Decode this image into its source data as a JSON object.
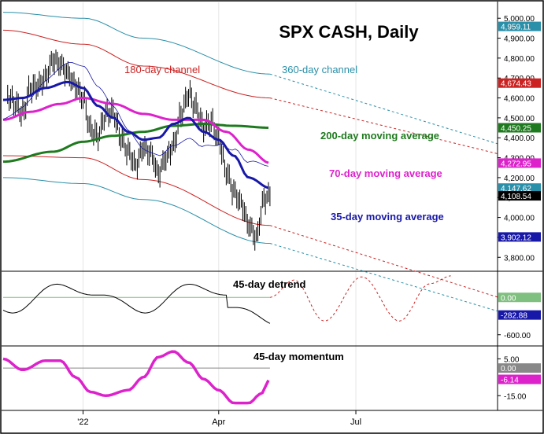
{
  "chart_data": [
    {
      "type": "line",
      "panel": "price",
      "title": "SPX CASH, Daily",
      "y_axis_ticks": [
        "5,000.00",
        "4,900.00",
        "4,800.00",
        "4,700.00",
        "4,600.00",
        "4,500.00",
        "4,400.00",
        "4,300.00",
        "4,200.00",
        "4,100.00",
        "4,000.00",
        "3,900.00",
        "3,800.00"
      ],
      "tick_values": [
        5000,
        4900,
        4800,
        4700,
        4600,
        4500,
        4400,
        4300,
        4200,
        4100,
        4000,
        3900,
        3800
      ],
      "ylim": [
        3730,
        5060
      ],
      "x_axis_labels": [
        "'22",
        "Apr",
        "Jul"
      ],
      "x_label_days": [
        0,
        90,
        181
      ],
      "xlim_days": [
        -53,
        275
      ],
      "last_day": 124,
      "price_ohlc_approx": {
        "days": [
          -50,
          -45,
          -40,
          -35,
          -30,
          -25,
          -20,
          -15,
          -10,
          -5,
          0,
          5,
          10,
          15,
          20,
          25,
          30,
          35,
          40,
          45,
          50,
          55,
          60,
          65,
          70,
          75,
          80,
          85,
          90,
          95,
          100,
          105,
          110,
          115,
          120,
          124
        ],
        "close": [
          4610,
          4570,
          4520,
          4650,
          4660,
          4700,
          4790,
          4770,
          4720,
          4660,
          4600,
          4440,
          4410,
          4520,
          4530,
          4400,
          4330,
          4260,
          4350,
          4320,
          4220,
          4300,
          4360,
          4520,
          4620,
          4550,
          4450,
          4480,
          4390,
          4230,
          4130,
          4070,
          3960,
          3900,
          4090,
          4108.54
        ]
      },
      "series": [
        {
          "name": "180-day channel",
          "color": "#cc2222",
          "upper_line": [
            [
              -53,
              4940
            ],
            [
              0,
              4870
            ],
            [
              40,
              4760
            ],
            [
              124,
              4600
            ],
            [
              275,
              4320
            ]
          ],
          "lower_line": [
            [
              -53,
              4310
            ],
            [
              0,
              4300
            ],
            [
              40,
              4190
            ],
            [
              124,
              3960
            ],
            [
              275,
              3600
            ]
          ]
        },
        {
          "name": "360-day channel",
          "color": "#2a8fa8",
          "upper_line": [
            [
              -53,
              5030
            ],
            [
              0,
              5000
            ],
            [
              40,
              4900
            ],
            [
              124,
              4720
            ],
            [
              275,
              4370
            ]
          ],
          "lower_line": [
            [
              -53,
              4200
            ],
            [
              0,
              4170
            ],
            [
              40,
              4090
            ],
            [
              124,
              3870
            ],
            [
              275,
              3530
            ]
          ]
        },
        {
          "name": "200-day moving average",
          "color": "#1e7a1e",
          "points": [
            [
              -53,
              4280
            ],
            [
              -20,
              4330
            ],
            [
              0,
              4380
            ],
            [
              20,
              4410
            ],
            [
              40,
              4430
            ],
            [
              60,
              4460
            ],
            [
              80,
              4470
            ],
            [
              100,
              4460
            ],
            [
              124,
              4450.25
            ]
          ]
        },
        {
          "name": "70-day moving average",
          "color": "#dd22cc",
          "points": [
            [
              -53,
              4490
            ],
            [
              -35,
              4530
            ],
            [
              -15,
              4570
            ],
            [
              0,
              4600
            ],
            [
              20,
              4570
            ],
            [
              40,
              4520
            ],
            [
              60,
              4490
            ],
            [
              80,
              4490
            ],
            [
              95,
              4430
            ],
            [
              110,
              4340
            ],
            [
              124,
              4272.95
            ]
          ]
        },
        {
          "name": "35-day moving average",
          "color": "#1818a8",
          "points": [
            [
              -53,
              4590
            ],
            [
              -40,
              4600
            ],
            [
              -25,
              4650
            ],
            [
              -10,
              4680
            ],
            [
              0,
              4650
            ],
            [
              10,
              4560
            ],
            [
              20,
              4500
            ],
            [
              30,
              4430
            ],
            [
              40,
              4390
            ],
            [
              50,
              4400
            ],
            [
              60,
              4470
            ],
            [
              70,
              4500
            ],
            [
              80,
              4430
            ],
            [
              90,
              4390
            ],
            [
              100,
              4310
            ],
            [
              110,
              4200
            ],
            [
              124,
              4147.62
            ]
          ]
        }
      ],
      "right_labels": [
        {
          "text": "4,959.11",
          "value": 4959.11,
          "color": "#2a8fa8"
        },
        {
          "text": "4,674.43",
          "value": 4674.43,
          "color": "#cc2222"
        },
        {
          "text": "4,450.25",
          "value": 4450.25,
          "color": "#1e7a1e"
        },
        {
          "text": "4,272.95",
          "value": 4272.95,
          "color": "#dd22cc"
        },
        {
          "text": "4,147.62",
          "value": 4147.62,
          "color": "#2a8fa8"
        },
        {
          "text": "4,108.54",
          "value": 4108.54,
          "color": "#000000"
        },
        {
          "text": "3,902.12",
          "value": 3902.12,
          "color": "#1818a8"
        }
      ]
    },
    {
      "type": "line",
      "panel": "detrend",
      "y_axis_ticks": [
        "-600.00"
      ],
      "tick_values": [
        -600
      ],
      "ylim": [
        -780,
        420
      ],
      "projection_color": "#cc2222",
      "series": [
        {
          "name": "45-day detrend",
          "color": "#000000"
        },
        {
          "name": "projection",
          "color": "#cc2222",
          "points": [
            [
              124,
              0
            ],
            [
              140,
              280
            ],
            [
              160,
              -380
            ],
            [
              185,
              330
            ],
            [
              210,
              -380
            ],
            [
              230,
              220
            ],
            [
              245,
              350
            ]
          ]
        }
      ],
      "right_labels": [
        {
          "text": "0.00",
          "value": 0,
          "color": "#7fbf7f"
        },
        {
          "text": "-282.88",
          "value": -282.88,
          "color": "#1818a8"
        }
      ]
    },
    {
      "type": "line",
      "panel": "momentum",
      "y_axis_ticks": [
        "5.00",
        "-15.00"
      ],
      "tick_values": [
        5,
        -15
      ],
      "ylim": [
        -23,
        12
      ],
      "series": [
        {
          "name": "45-day momentum",
          "color": "#dd22cc",
          "points": [
            [
              -53,
              5
            ],
            [
              -40,
              -1
            ],
            [
              -25,
              4
            ],
            [
              -15,
              4
            ],
            [
              -5,
              -5
            ],
            [
              5,
              -13
            ],
            [
              15,
              -15
            ],
            [
              30,
              -12
            ],
            [
              40,
              -5
            ],
            [
              50,
              6
            ],
            [
              60,
              9
            ],
            [
              70,
              3
            ],
            [
              80,
              -6
            ],
            [
              90,
              -12
            ],
            [
              100,
              -19
            ],
            [
              110,
              -19
            ],
            [
              118,
              -14
            ],
            [
              124,
              -6.14
            ]
          ]
        }
      ],
      "right_labels": [
        {
          "text": "0.00",
          "value": 0,
          "color": "#888888"
        },
        {
          "text": "-6.14",
          "value": -6.14,
          "color": "#dd22cc"
        }
      ]
    }
  ],
  "annotations": {
    "c180": "180-day channel",
    "c360": "360-day channel",
    "ma200": "200-day moving average",
    "ma70": "70-day moving average",
    "ma35": "35-day moving average",
    "detrend": "45-day detrend",
    "momentum": "45-day momentum"
  },
  "colors": {
    "red": "#cc2222",
    "teal": "#2a8fa8",
    "green": "#1e7a1e",
    "magenta": "#dd22cc",
    "navy": "#1818a8",
    "black": "#000000"
  }
}
